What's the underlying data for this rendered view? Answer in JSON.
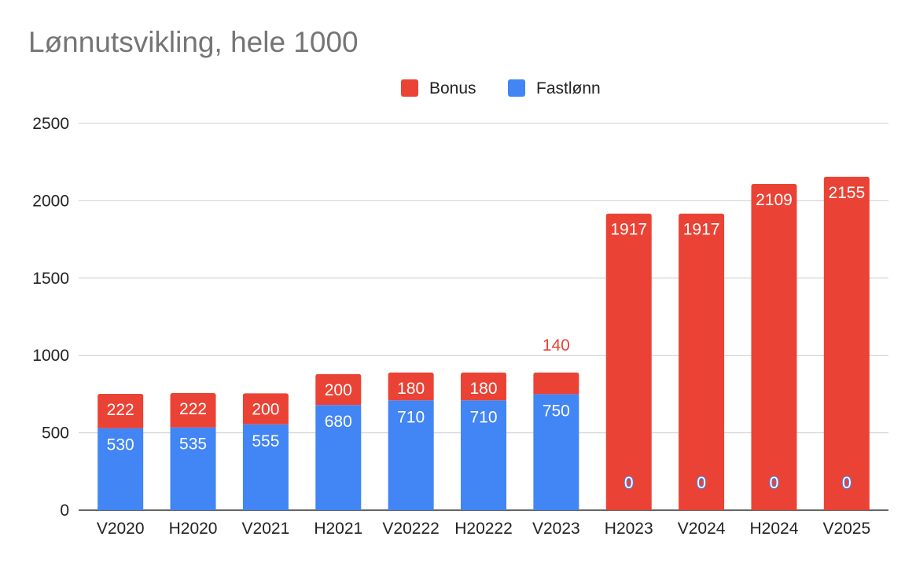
{
  "chart_data": {
    "type": "bar",
    "stacked": true,
    "title": "Lønnutsvikling, hele 1000",
    "xlabel": "",
    "ylabel": "",
    "ylim": [
      0,
      2500
    ],
    "yticks": [
      "0",
      "500",
      "1000",
      "1500",
      "2000",
      "2500"
    ],
    "grid": true,
    "legend_position": "top",
    "categories": [
      "V2020",
      "H2020",
      "V2021",
      "H2021",
      "V20222",
      "H20222",
      "V2023",
      "H2023",
      "V2024",
      "H2024",
      "V2025"
    ],
    "series": [
      {
        "name": "Fastlønn",
        "color": "#4285f4",
        "values": [
          530,
          535,
          555,
          680,
          710,
          710,
          750,
          0,
          0,
          0,
          0
        ]
      },
      {
        "name": "Bonus",
        "color": "#ea4335",
        "values": [
          222,
          222,
          200,
          200,
          180,
          180,
          140,
          1917,
          1917,
          2109,
          2155
        ]
      }
    ],
    "legend_order": [
      "Bonus",
      "Fastlønn"
    ]
  }
}
